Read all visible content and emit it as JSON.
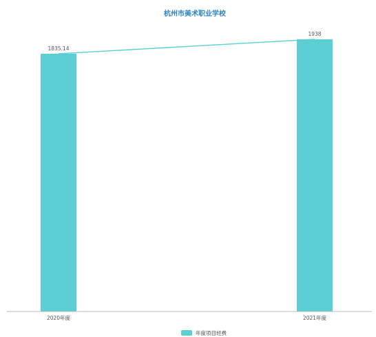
{
  "chart_data": {
    "type": "bar",
    "title": "杭州市美术职业学校",
    "categories": [
      "2020年度",
      "2021年度"
    ],
    "series": [
      {
        "name": "年度项目经费",
        "values": [
          1835.14,
          1938
        ],
        "value_labels": [
          "1835.14",
          "1938"
        ],
        "color": "#5bcfd4"
      }
    ],
    "overlay": {
      "type": "line",
      "series_index": 0,
      "color": "#5bcfd4"
    },
    "xlabel": "",
    "ylabel": "",
    "ylim": [
      0,
      1938
    ],
    "grid": false,
    "legend": "bottom-center",
    "axis_color": "#bbbbbb"
  }
}
